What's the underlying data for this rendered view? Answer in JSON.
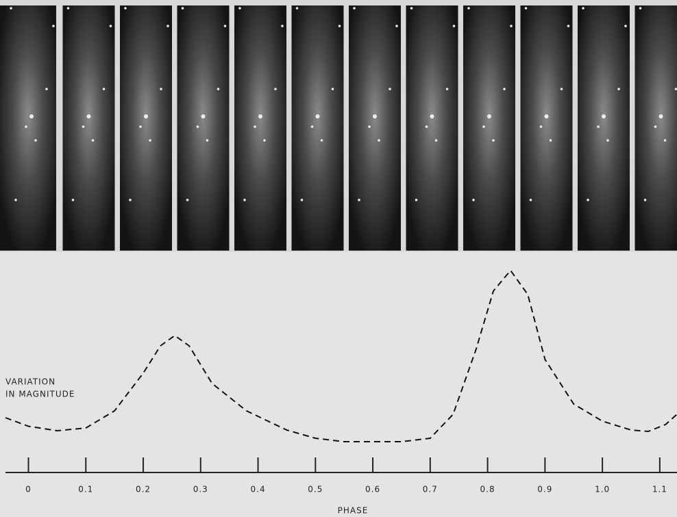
{
  "chart_data": {
    "type": "line",
    "xlabel": "PHASE",
    "ylabel_lines": [
      "VARIATION",
      "IN MAGNITUDE"
    ],
    "xlim": [
      -0.04,
      1.13
    ],
    "ylim": [
      0,
      1
    ],
    "xticks": [
      0,
      0.1,
      0.2,
      0.3,
      0.4,
      0.5,
      0.6,
      0.7,
      0.8,
      0.9,
      {
        "value": 1,
        "label": "1.0"
      },
      1.1
    ],
    "series": [
      {
        "color": "#111111",
        "dashed": true,
        "x": [
          -0.04,
          0,
          0.05,
          0.1,
          0.15,
          0.2,
          0.23,
          0.255,
          0.28,
          0.32,
          0.38,
          0.45,
          0.5,
          0.55,
          0.6,
          0.65,
          0.7,
          0.74,
          0.78,
          0.81,
          0.84,
          0.87,
          0.9,
          0.95,
          1,
          1.05,
          1.08,
          1.11,
          1.13
        ],
        "values": [
          0.14,
          0.09,
          0.064,
          0.08,
          0.18,
          0.4,
          0.56,
          0.62,
          0.56,
          0.34,
          0.18,
          0.068,
          0.02,
          0,
          0,
          0,
          0.02,
          0.16,
          0.54,
          0.88,
          1,
          0.86,
          0.48,
          0.22,
          0.12,
          0.068,
          0.06,
          0.1,
          0.16
        ]
      }
    ]
  }
}
